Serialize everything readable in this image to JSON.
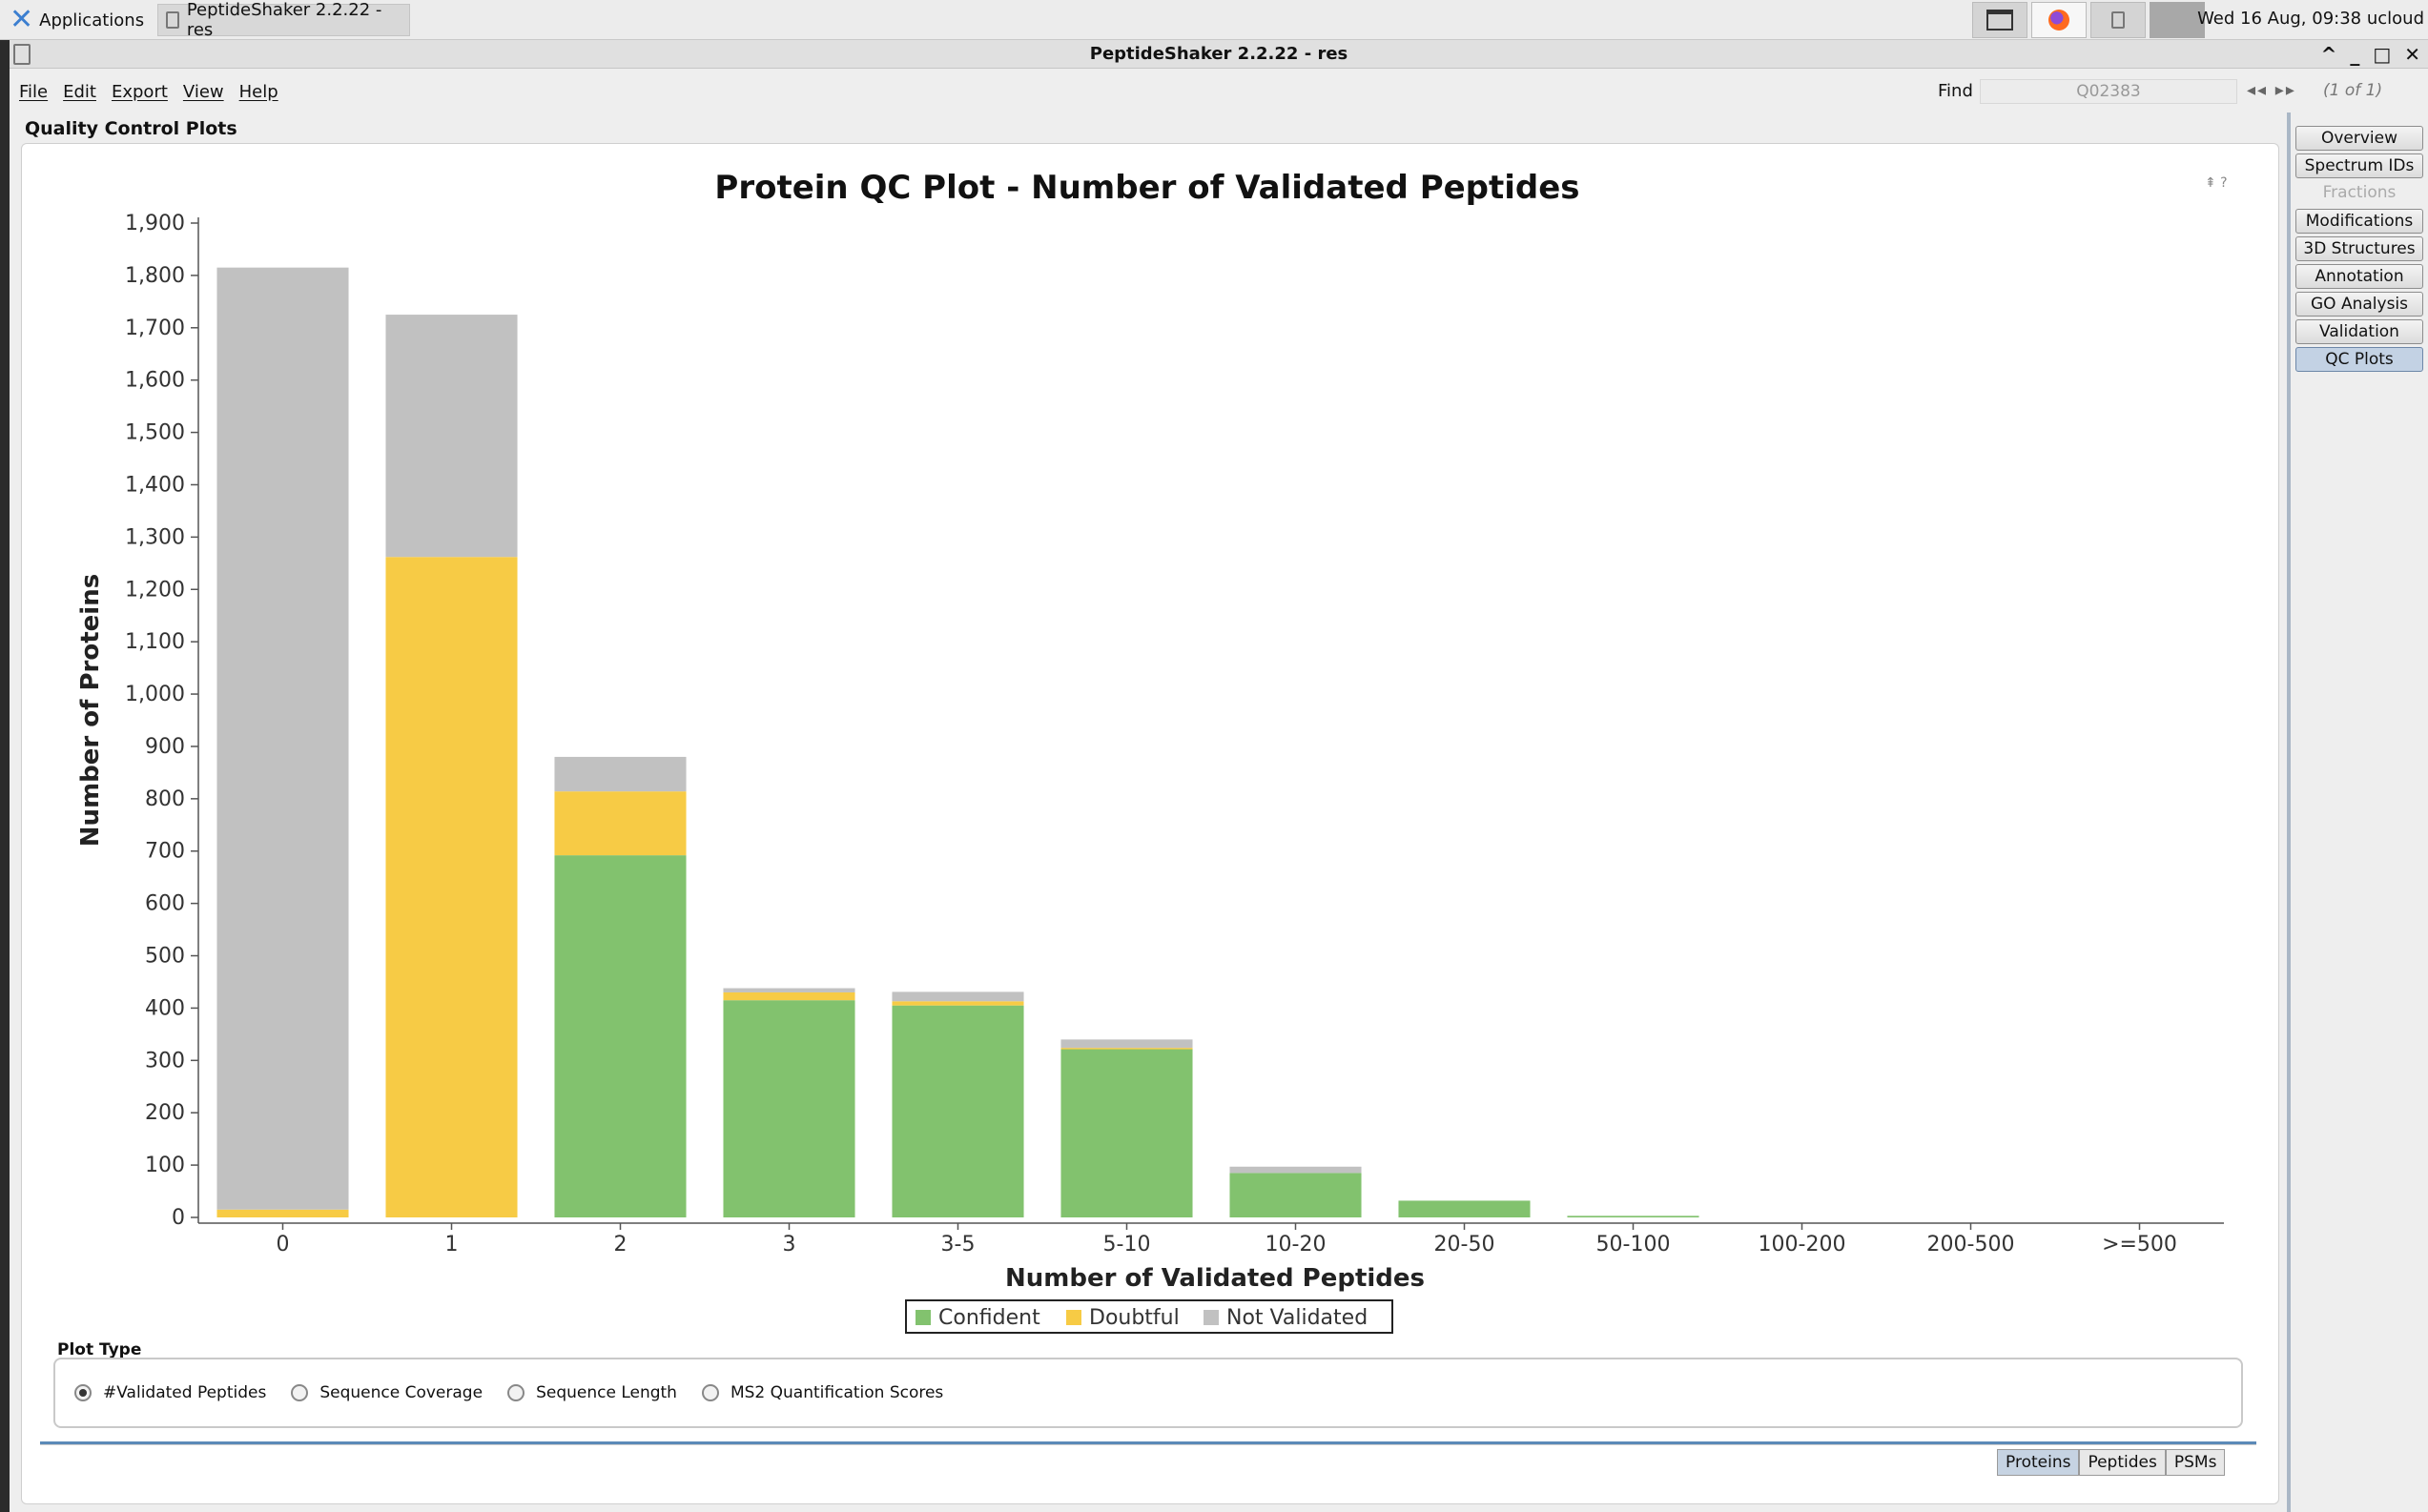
{
  "system_panel": {
    "applications_label": "Applications",
    "task_label": "PeptideShaker 2.2.22 - res",
    "clock": "Wed 16 Aug, 09:38  ucloud"
  },
  "window": {
    "title": "PeptideShaker 2.2.22 - res",
    "controls": [
      "^",
      "_",
      "□",
      "✕"
    ]
  },
  "menu": {
    "items": [
      "File",
      "Edit",
      "Export",
      "View",
      "Help"
    ]
  },
  "find": {
    "label": "Find",
    "value": "Q02383",
    "arrows": "◂◂ ▸▸",
    "count": "(1 of 1)"
  },
  "main": {
    "title": "Quality Control Plots"
  },
  "side_tabs": [
    {
      "label": "Overview",
      "state": "normal"
    },
    {
      "label": "Spectrum IDs",
      "state": "normal"
    },
    {
      "label": "Fractions",
      "state": "disabled"
    },
    {
      "label": "Modifications",
      "state": "normal"
    },
    {
      "label": "3D Structures",
      "state": "normal"
    },
    {
      "label": "Annotation",
      "state": "normal"
    },
    {
      "label": "GO Analysis",
      "state": "normal"
    },
    {
      "label": "Validation",
      "state": "normal"
    },
    {
      "label": "QC Plots",
      "state": "active"
    }
  ],
  "chart_data": {
    "type": "bar",
    "stacked": true,
    "title": "Protein QC Plot - Number of Validated Peptides",
    "xlabel": "Number of Validated Peptides",
    "ylabel": "Number of Proteins",
    "ylim": [
      0,
      1900
    ],
    "yticks": [
      0,
      100,
      200,
      300,
      400,
      500,
      600,
      700,
      800,
      900,
      1000,
      1100,
      1200,
      1300,
      1400,
      1500,
      1600,
      1700,
      1800,
      1900
    ],
    "categories": [
      "0",
      "1",
      "2",
      "3",
      "3-5",
      "5-10",
      "10-20",
      "20-50",
      "50-100",
      "100-200",
      "200-500",
      ">=500"
    ],
    "series": [
      {
        "name": "Confident",
        "color": "#82c26e",
        "values": [
          0,
          0,
          692,
          415,
          405,
          322,
          85,
          32,
          3,
          0,
          0,
          0
        ]
      },
      {
        "name": "Doubtful",
        "color": "#f7cb45",
        "values": [
          15,
          1262,
          122,
          15,
          8,
          2,
          0,
          0,
          0,
          0,
          0,
          0
        ]
      },
      {
        "name": "Not Validated",
        "color": "#c1c1c1",
        "values": [
          1800,
          463,
          66,
          8,
          18,
          16,
          12,
          0,
          0,
          0,
          0,
          0
        ]
      }
    ],
    "legend_position": "bottom"
  },
  "plot_type": {
    "label": "Plot Type",
    "options": [
      {
        "label": "#Validated Peptides",
        "selected": true
      },
      {
        "label": "Sequence Coverage",
        "selected": false
      },
      {
        "label": "Sequence Length",
        "selected": false
      },
      {
        "label": "MS2 Quantification Scores",
        "selected": false
      }
    ]
  },
  "bottom_tabs": [
    {
      "label": "Proteins",
      "active": true
    },
    {
      "label": "Peptides",
      "active": false
    },
    {
      "label": "PSMs",
      "active": false
    }
  ],
  "corner_icons": "⇞ ?"
}
